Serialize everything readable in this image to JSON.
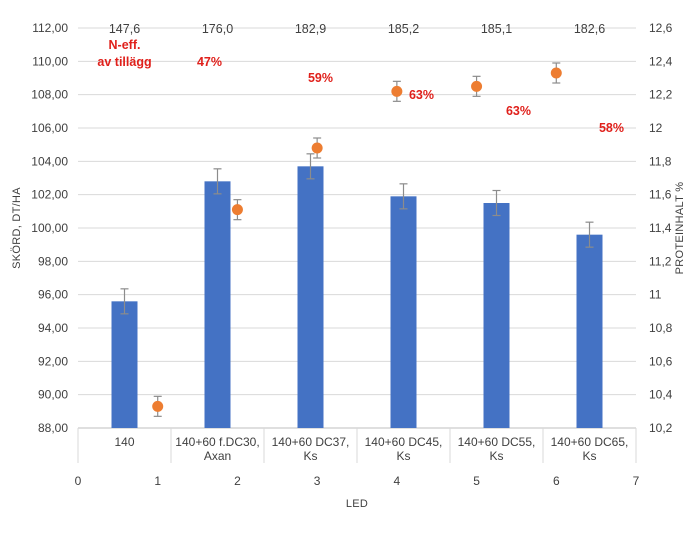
{
  "chart_data": {
    "type": "bar",
    "categories": [
      "140",
      "140+60 f.DC30,\nAxan",
      "140+60 DC37,\nKs",
      "140+60 DC45,\nKs",
      "140+60 DC55,\nKs",
      "140+60 DC65,\nKs"
    ],
    "series": [
      {
        "kind": "bar",
        "axis": "left",
        "color": "#4472c4",
        "values": [
          95.6,
          102.8,
          103.7,
          101.9,
          101.5,
          99.6
        ],
        "error": [
          0.75,
          0.75,
          0.75,
          0.75,
          0.75,
          0.75
        ]
      },
      {
        "kind": "scatter",
        "axis": "right",
        "color": "#ed7d31",
        "values": [
          10.33,
          11.51,
          11.88,
          12.22,
          12.25,
          12.33
        ],
        "error": [
          0.06,
          0.06,
          0.06,
          0.06,
          0.06,
          0.06
        ]
      }
    ],
    "ylabel": "SKÖRD, DT/HA",
    "y2label": "PROTEINHALT %",
    "xlabel": "LED",
    "ylim": [
      88,
      112
    ],
    "yticks": [
      "88,00",
      "90,00",
      "92,00",
      "94,00",
      "96,00",
      "98,00",
      "100,00",
      "102,00",
      "104,00",
      "106,00",
      "108,00",
      "110,00",
      "112,00"
    ],
    "y2lim": [
      10.2,
      12.6
    ],
    "y2ticks": [
      "10,2",
      "10,4",
      "10,6",
      "10,8",
      "11",
      "11,2",
      "11,4",
      "11,6",
      "11,8",
      "12",
      "12,2",
      "12,4",
      "12,6"
    ],
    "xlim": [
      0,
      7
    ],
    "xticks": [
      "0",
      "1",
      "2",
      "3",
      "4",
      "5",
      "6",
      "7"
    ],
    "grid": true,
    "top_values": [
      "147,6",
      "176,0",
      "182,9",
      "185,2",
      "185,1",
      "182,6"
    ],
    "n_eff_label": [
      "N-eff.",
      "av tillägg"
    ],
    "percent_labels": [
      "47%",
      "59%",
      "63%",
      "63%",
      "58%"
    ]
  }
}
